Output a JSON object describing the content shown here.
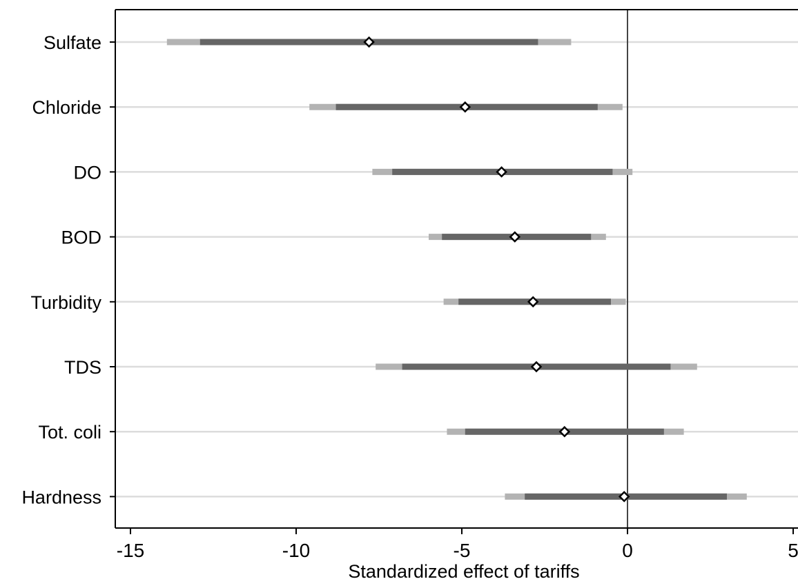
{
  "chart_data": {
    "type": "coefficient_plot",
    "title": "",
    "xlabel": "Standardized effect of tariffs",
    "ylabel": "",
    "xlim": [
      -15.4,
      5.2
    ],
    "xticks": [
      -15,
      -10,
      -5,
      0,
      5
    ],
    "xtick_labels": [
      "-15",
      "-10",
      "-5",
      "0",
      "5"
    ],
    "reference_line_x": 0,
    "grid": true,
    "legend": "none",
    "colors": {
      "ci_outer": "#b3b3b3",
      "ci_inner": "#666666",
      "marker_fill": "#ffffff",
      "marker_stroke": "#000000",
      "gridline": "#dcdcdc",
      "reference_line": "#444444"
    },
    "categories": [
      "Sulfate",
      "Chloride",
      "DO",
      "BOD",
      "Turbidity",
      "TDS",
      "Tot. coli",
      "Hardness"
    ],
    "estimates": [
      -7.8,
      -4.9,
      -3.8,
      -3.4,
      -2.85,
      -2.75,
      -1.9,
      -0.1
    ],
    "ci_inner": [
      [
        -12.9,
        -2.7
      ],
      [
        -8.8,
        -0.9
      ],
      [
        -7.1,
        -0.45
      ],
      [
        -5.6,
        -1.1
      ],
      [
        -5.1,
        -0.5
      ],
      [
        -6.8,
        1.3
      ],
      [
        -4.9,
        1.1
      ],
      [
        -3.1,
        3.0
      ]
    ],
    "ci_outer": [
      [
        -13.9,
        -1.7
      ],
      [
        -9.6,
        -0.15
      ],
      [
        -7.7,
        0.15
      ],
      [
        -6.0,
        -0.65
      ],
      [
        -5.55,
        -0.05
      ],
      [
        -7.6,
        2.1
      ],
      [
        -5.45,
        1.7
      ],
      [
        -3.7,
        3.6
      ]
    ]
  }
}
